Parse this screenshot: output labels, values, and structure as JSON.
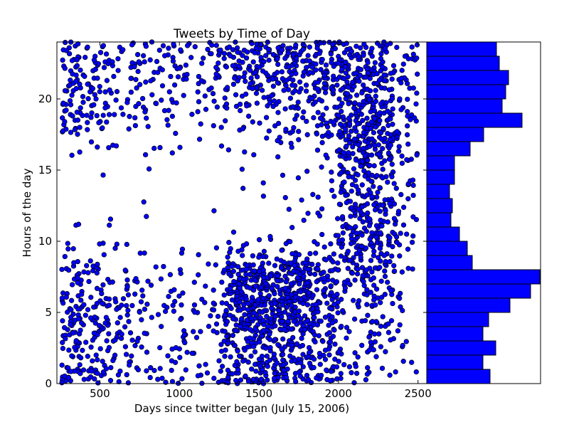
{
  "chart_data": [
    {
      "type": "scatter",
      "title": "Tweets by Time of Day",
      "xlabel": "Days since twitter began (July 15, 2006)",
      "ylabel": "Hours of the day",
      "xlim": [
        230,
        2555
      ],
      "ylim": [
        0,
        24
      ],
      "xticks": [
        500,
        1000,
        1500,
        2000,
        2500
      ],
      "yticks": [
        0,
        5,
        10,
        15,
        20
      ],
      "grid": false,
      "marker": "circle",
      "marker_color": "#0000ff",
      "marker_edge": "#000000",
      "density": {
        "x_bins": [
          [
            260,
            400
          ],
          [
            400,
            560
          ],
          [
            560,
            720
          ],
          [
            720,
            880
          ],
          [
            880,
            1040
          ],
          [
            1040,
            1200
          ],
          [
            1200,
            1280
          ],
          [
            1280,
            1420
          ],
          [
            1420,
            1560
          ],
          [
            1560,
            1700
          ],
          [
            1700,
            1850
          ],
          [
            1850,
            2000
          ],
          [
            2000,
            2120
          ],
          [
            2120,
            2250
          ],
          [
            2250,
            2360
          ],
          [
            2360,
            2500
          ]
        ],
        "y_bins_hours": [
          [
            0,
            2
          ],
          [
            2,
            4
          ],
          [
            4,
            5.5
          ],
          [
            5.5,
            7
          ],
          [
            7,
            8.5
          ],
          [
            8.5,
            10
          ],
          [
            10,
            12
          ],
          [
            12,
            14
          ],
          [
            14,
            16
          ],
          [
            16,
            17.5
          ],
          [
            17.5,
            19
          ],
          [
            19,
            21
          ],
          [
            21,
            22.5
          ],
          [
            22.5,
            24
          ]
        ],
        "approx_points_per_cell": [
          [
            24,
            20,
            14,
            8,
            10,
            7,
            6,
            30,
            38,
            34,
            30,
            22,
            10,
            6,
            3,
            3
          ],
          [
            22,
            18,
            12,
            8,
            9,
            6,
            5,
            26,
            34,
            30,
            28,
            20,
            8,
            12,
            6,
            4
          ],
          [
            20,
            16,
            10,
            6,
            8,
            5,
            4,
            30,
            40,
            32,
            32,
            20,
            4,
            10,
            6,
            3
          ],
          [
            14,
            12,
            8,
            6,
            7,
            4,
            4,
            34,
            44,
            40,
            40,
            22,
            6,
            14,
            8,
            3
          ],
          [
            12,
            10,
            6,
            4,
            5,
            3,
            3,
            28,
            36,
            34,
            42,
            24,
            12,
            18,
            10,
            3
          ],
          [
            5,
            4,
            3,
            2,
            2,
            1,
            1,
            8,
            8,
            8,
            10,
            10,
            18,
            20,
            14,
            6
          ],
          [
            2,
            1,
            1,
            1,
            0,
            0,
            0,
            1,
            1,
            2,
            3,
            6,
            22,
            26,
            18,
            8
          ],
          [
            0,
            0,
            0,
            1,
            0,
            0,
            1,
            1,
            1,
            2,
            2,
            4,
            22,
            26,
            16,
            8
          ],
          [
            0,
            1,
            0,
            1,
            0,
            0,
            0,
            1,
            1,
            2,
            2,
            4,
            22,
            28,
            18,
            8
          ],
          [
            2,
            3,
            2,
            3,
            2,
            1,
            1,
            2,
            2,
            3,
            4,
            8,
            24,
            28,
            18,
            8
          ],
          [
            16,
            12,
            4,
            4,
            4,
            2,
            2,
            4,
            4,
            6,
            8,
            16,
            28,
            30,
            18,
            8
          ],
          [
            20,
            16,
            8,
            10,
            10,
            6,
            4,
            14,
            16,
            16,
            20,
            22,
            28,
            30,
            18,
            10
          ],
          [
            14,
            12,
            8,
            10,
            10,
            8,
            6,
            16,
            18,
            18,
            20,
            22,
            24,
            24,
            16,
            10
          ],
          [
            14,
            12,
            8,
            10,
            10,
            8,
            8,
            16,
            20,
            22,
            22,
            24,
            20,
            18,
            12,
            10
          ]
        ]
      }
    },
    {
      "type": "bar",
      "orientation": "horizontal",
      "bar_color": "#0000ff",
      "bar_edge": "#000000",
      "categories": [
        "0-1",
        "1-2",
        "2-3",
        "3-4",
        "4-5",
        "5-6",
        "6-7",
        "7-8",
        "8-9",
        "9-10",
        "10-11",
        "11-12",
        "12-13",
        "13-14",
        "14-15",
        "15-16",
        "16-17",
        "17-18",
        "18-19",
        "19-20",
        "20-21",
        "21-22",
        "22-23",
        "23-24"
      ],
      "values": [
        89,
        79,
        97,
        79,
        87,
        117,
        146,
        159,
        64,
        57,
        46,
        34,
        36,
        32,
        39,
        39,
        61,
        80,
        134,
        106,
        111,
        115,
        102,
        98
      ],
      "xlim": [
        0,
        160
      ],
      "ylim": [
        0,
        24
      ]
    }
  ]
}
